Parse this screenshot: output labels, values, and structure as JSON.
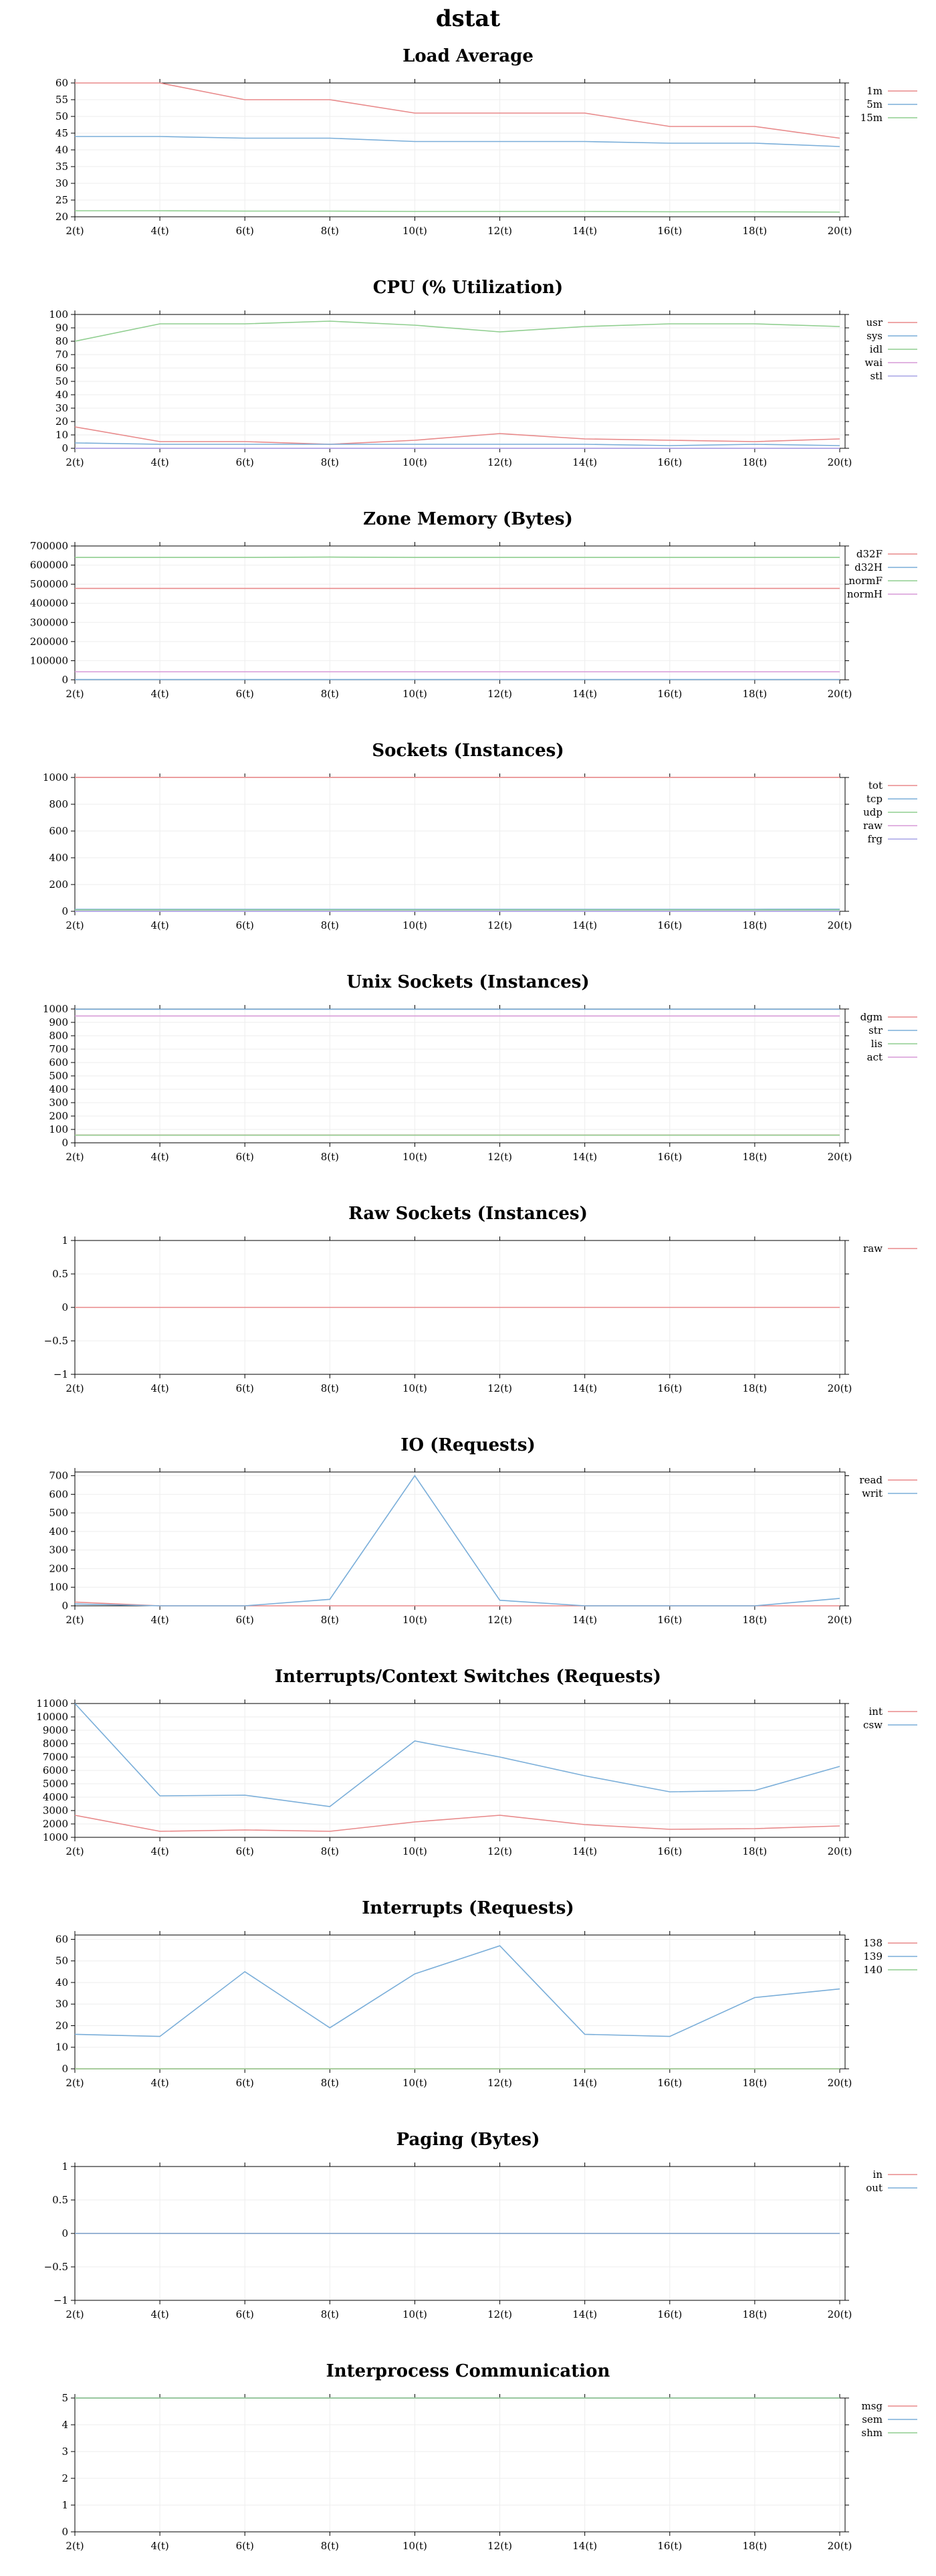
{
  "page_title": "dstat",
  "chart_data": [
    {
      "type": "line",
      "title": "Load Average",
      "x": [
        "2(t)",
        "4(t)",
        "6(t)",
        "8(t)",
        "10(t)",
        "12(t)",
        "14(t)",
        "16(t)",
        "18(t)",
        "20(t)"
      ],
      "yticks": [
        "20",
        "25",
        "30",
        "35",
        "40",
        "45",
        "50",
        "55",
        "60"
      ],
      "ylim": [
        20,
        60
      ],
      "grid": true,
      "legend_position": "right",
      "series": [
        {
          "name": "1m",
          "color": "#e8898a",
          "values": [
            60,
            60,
            55,
            55,
            51,
            51,
            51,
            47,
            47,
            43.5
          ]
        },
        {
          "name": "5m",
          "color": "#7aaed9",
          "values": [
            44,
            44,
            43.5,
            43.5,
            42.5,
            42.5,
            42.5,
            42,
            42,
            41
          ]
        },
        {
          "name": "15m",
          "color": "#8fce8f",
          "values": [
            21.8,
            21.8,
            21.7,
            21.7,
            21.6,
            21.6,
            21.6,
            21.5,
            21.5,
            21.4
          ]
        }
      ]
    },
    {
      "type": "line",
      "title": "CPU (% Utilization)",
      "x": [
        "2(t)",
        "4(t)",
        "6(t)",
        "8(t)",
        "10(t)",
        "12(t)",
        "14(t)",
        "16(t)",
        "18(t)",
        "20(t)"
      ],
      "yticks": [
        "0",
        "10",
        "20",
        "30",
        "40",
        "50",
        "60",
        "70",
        "80",
        "90",
        "100"
      ],
      "ylim": [
        0,
        100
      ],
      "grid": true,
      "legend_position": "right",
      "series": [
        {
          "name": "usr",
          "color": "#e8898a",
          "values": [
            16,
            5,
            5,
            3,
            6,
            11,
            7,
            6,
            5,
            7
          ]
        },
        {
          "name": "sys",
          "color": "#7aaed9",
          "values": [
            4,
            3,
            3,
            3,
            3,
            3,
            3,
            2,
            3,
            2
          ]
        },
        {
          "name": "idl",
          "color": "#8fce8f",
          "values": [
            80,
            93,
            93,
            95,
            92,
            87,
            91,
            93,
            93,
            91
          ]
        },
        {
          "name": "wai",
          "color": "#d79ad7",
          "values": [
            0,
            0,
            0,
            0,
            0,
            0,
            0,
            0,
            0,
            0
          ]
        },
        {
          "name": "stl",
          "color": "#a7a3e6",
          "values": [
            0,
            0,
            0,
            0,
            0,
            0,
            0,
            0,
            0,
            0
          ]
        }
      ]
    },
    {
      "type": "line",
      "title": "Zone Memory (Bytes)",
      "x": [
        "2(t)",
        "4(t)",
        "6(t)",
        "8(t)",
        "10(t)",
        "12(t)",
        "14(t)",
        "16(t)",
        "18(t)",
        "20(t)"
      ],
      "yticks": [
        "0",
        "100000",
        "200000",
        "300000",
        "400000",
        "500000",
        "600000",
        "700000"
      ],
      "ylim": [
        0,
        700000
      ],
      "grid": true,
      "legend_position": "right",
      "series": [
        {
          "name": "d32F",
          "color": "#e8898a",
          "values": [
            478000,
            478000,
            478000,
            478000,
            478000,
            478000,
            478000,
            478000,
            478000,
            478000
          ]
        },
        {
          "name": "d32H",
          "color": "#7aaed9",
          "values": [
            1500,
            1500,
            1500,
            1500,
            1500,
            1500,
            1500,
            1500,
            1500,
            1500
          ]
        },
        {
          "name": "normF",
          "color": "#8fce8f",
          "values": [
            640000,
            640000,
            640000,
            642000,
            640000,
            640000,
            640000,
            640000,
            640000,
            640000
          ]
        },
        {
          "name": "normH",
          "color": "#d79ad7",
          "values": [
            42000,
            42000,
            42000,
            42000,
            42000,
            42000,
            42000,
            42000,
            42000,
            42000
          ]
        }
      ]
    },
    {
      "type": "line",
      "title": "Sockets (Instances)",
      "x": [
        "2(t)",
        "4(t)",
        "6(t)",
        "8(t)",
        "10(t)",
        "12(t)",
        "14(t)",
        "16(t)",
        "18(t)",
        "20(t)"
      ],
      "yticks": [
        "0",
        "200",
        "400",
        "600",
        "800",
        "1000"
      ],
      "ylim": [
        0,
        1000
      ],
      "grid": true,
      "legend_position": "right",
      "series": [
        {
          "name": "tot",
          "color": "#e8898a",
          "values": [
            1001,
            1001,
            1001,
            1001,
            1001,
            1001,
            1001,
            1001,
            1001,
            1001
          ]
        },
        {
          "name": "tcp",
          "color": "#7aaed9",
          "values": [
            15,
            15,
            15,
            15,
            15,
            15,
            15,
            15,
            15,
            16
          ]
        },
        {
          "name": "udp",
          "color": "#8fce8f",
          "values": [
            10,
            10,
            10,
            10,
            10,
            10,
            10,
            10,
            10,
            10
          ]
        },
        {
          "name": "raw",
          "color": "#d79ad7",
          "values": [
            0,
            0,
            0,
            0,
            0,
            0,
            0,
            0,
            0,
            0
          ]
        },
        {
          "name": "frg",
          "color": "#a7a3e6",
          "values": [
            0,
            0,
            0,
            0,
            0,
            0,
            0,
            0,
            0,
            0
          ]
        }
      ]
    },
    {
      "type": "line",
      "title": "Unix Sockets (Instances)",
      "x": [
        "2(t)",
        "4(t)",
        "6(t)",
        "8(t)",
        "10(t)",
        "12(t)",
        "14(t)",
        "16(t)",
        "18(t)",
        "20(t)"
      ],
      "yticks": [
        "0",
        "100",
        "200",
        "300",
        "400",
        "500",
        "600",
        "700",
        "800",
        "900",
        "1000"
      ],
      "ylim": [
        0,
        1000
      ],
      "grid": true,
      "legend_position": "right",
      "series": [
        {
          "name": "dgm",
          "color": "#e8898a",
          "values": [
            58,
            58,
            58,
            58,
            58,
            58,
            58,
            58,
            58,
            58
          ]
        },
        {
          "name": "str",
          "color": "#7aaed9",
          "values": [
            998,
            998,
            998,
            998,
            998,
            998,
            998,
            998,
            998,
            998
          ]
        },
        {
          "name": "lis",
          "color": "#8fce8f",
          "values": [
            57,
            57,
            57,
            57,
            57,
            57,
            57,
            57,
            57,
            57
          ]
        },
        {
          "name": "act",
          "color": "#d79ad7",
          "values": [
            948,
            948,
            948,
            948,
            948,
            948,
            948,
            948,
            948,
            948
          ]
        }
      ]
    },
    {
      "type": "line",
      "title": "Raw Sockets (Instances)",
      "x": [
        "2(t)",
        "4(t)",
        "6(t)",
        "8(t)",
        "10(t)",
        "12(t)",
        "14(t)",
        "16(t)",
        "18(t)",
        "20(t)"
      ],
      "yticks": [
        "−1",
        "−0.5",
        "0",
        "0.5",
        "1"
      ],
      "ylim": [
        -1,
        1
      ],
      "grid": true,
      "legend_position": "right",
      "series": [
        {
          "name": "raw",
          "color": "#e8898a",
          "values": [
            0,
            0,
            0,
            0,
            0,
            0,
            0,
            0,
            0,
            0
          ]
        }
      ]
    },
    {
      "type": "line",
      "title": "IO (Requests)",
      "x": [
        "2(t)",
        "4(t)",
        "6(t)",
        "8(t)",
        "10(t)",
        "12(t)",
        "14(t)",
        "16(t)",
        "18(t)",
        "20(t)"
      ],
      "yticks": [
        "0",
        "100",
        "200",
        "300",
        "400",
        "500",
        "600",
        "700"
      ],
      "ylim": [
        0,
        720
      ],
      "grid": true,
      "legend_position": "right",
      "series": [
        {
          "name": "read",
          "color": "#e8898a",
          "values": [
            20,
            0,
            0,
            0,
            0,
            0,
            0,
            0,
            0,
            0
          ]
        },
        {
          "name": "writ",
          "color": "#7aaed9",
          "values": [
            10,
            0,
            0,
            35,
            700,
            30,
            0,
            0,
            0,
            40
          ]
        }
      ]
    },
    {
      "type": "line",
      "title": "Interrupts/Context Switches (Requests)",
      "x": [
        "2(t)",
        "4(t)",
        "6(t)",
        "8(t)",
        "10(t)",
        "12(t)",
        "14(t)",
        "16(t)",
        "18(t)",
        "20(t)"
      ],
      "yticks": [
        "1000",
        "2000",
        "3000",
        "4000",
        "5000",
        "6000",
        "7000",
        "8000",
        "9000",
        "10000",
        "11000"
      ],
      "ylim": [
        1000,
        11000
      ],
      "grid": true,
      "legend_position": "right",
      "series": [
        {
          "name": "int",
          "color": "#e8898a",
          "values": [
            2650,
            1450,
            1550,
            1450,
            2150,
            2650,
            1950,
            1600,
            1650,
            1850
          ]
        },
        {
          "name": "csw",
          "color": "#7aaed9",
          "values": [
            11000,
            4100,
            4150,
            3300,
            8200,
            7000,
            5600,
            4400,
            4500,
            6300
          ]
        }
      ]
    },
    {
      "type": "line",
      "title": "Interrupts (Requests)",
      "x": [
        "2(t)",
        "4(t)",
        "6(t)",
        "8(t)",
        "10(t)",
        "12(t)",
        "14(t)",
        "16(t)",
        "18(t)",
        "20(t)"
      ],
      "yticks": [
        "0",
        "10",
        "20",
        "30",
        "40",
        "50",
        "60"
      ],
      "ylim": [
        0,
        62
      ],
      "grid": true,
      "legend_position": "right",
      "series": [
        {
          "name": "138",
          "color": "#e8898a",
          "values": [
            0,
            0,
            0,
            0,
            0,
            0,
            0,
            0,
            0,
            0
          ]
        },
        {
          "name": "139",
          "color": "#7aaed9",
          "values": [
            16,
            15,
            45,
            19,
            44,
            57,
            16,
            15,
            33,
            37
          ]
        },
        {
          "name": "140",
          "color": "#8fce8f",
          "values": [
            0,
            0,
            0,
            0,
            0,
            0,
            0,
            0,
            0,
            0
          ]
        }
      ]
    },
    {
      "type": "line",
      "title": "Paging (Bytes)",
      "x": [
        "2(t)",
        "4(t)",
        "6(t)",
        "8(t)",
        "10(t)",
        "12(t)",
        "14(t)",
        "16(t)",
        "18(t)",
        "20(t)"
      ],
      "yticks": [
        "−1",
        "−0.5",
        "0",
        "0.5",
        "1"
      ],
      "ylim": [
        -1,
        1
      ],
      "grid": true,
      "legend_position": "right",
      "series": [
        {
          "name": "in",
          "color": "#e8898a",
          "values": [
            0,
            0,
            0,
            0,
            0,
            0,
            0,
            0,
            0,
            0
          ]
        },
        {
          "name": "out",
          "color": "#7aaed9",
          "values": [
            0,
            0,
            0,
            0,
            0,
            0,
            0,
            0,
            0,
            0
          ]
        }
      ]
    },
    {
      "type": "line",
      "title": "Interprocess Communication",
      "x": [
        "2(t)",
        "4(t)",
        "6(t)",
        "8(t)",
        "10(t)",
        "12(t)",
        "14(t)",
        "16(t)",
        "18(t)",
        "20(t)"
      ],
      "yticks": [
        "0",
        "1",
        "2",
        "3",
        "4",
        "5"
      ],
      "ylim": [
        0,
        5
      ],
      "grid": true,
      "legend_position": "right",
      "series": [
        {
          "name": "msg",
          "color": "#e8898a",
          "values": [
            5,
            5,
            5,
            5,
            5,
            5,
            5,
            5,
            5,
            5
          ]
        },
        {
          "name": "sem",
          "color": "#7aaed9",
          "values": [
            5,
            5,
            5,
            5,
            5,
            5,
            5,
            5,
            5,
            5
          ]
        },
        {
          "name": "shm",
          "color": "#8fce8f",
          "values": [
            5,
            5,
            5,
            5,
            5,
            5,
            5,
            5,
            5,
            5
          ]
        }
      ]
    }
  ]
}
